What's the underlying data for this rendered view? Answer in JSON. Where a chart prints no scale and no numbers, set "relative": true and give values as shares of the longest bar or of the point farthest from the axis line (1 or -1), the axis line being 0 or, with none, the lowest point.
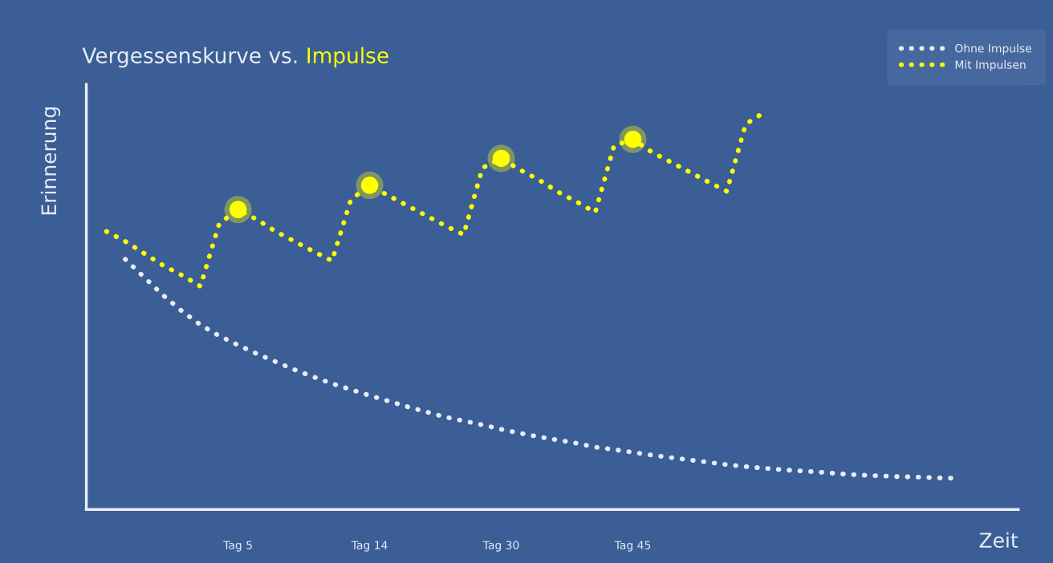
{
  "chart_data": {
    "type": "line",
    "title": "Vergessenskurve vs. Impulse",
    "xlabel": "Zeit",
    "ylabel": "Erinnerung",
    "relative": true,
    "categories": [
      null,
      null,
      null,
      null,
      null,
      null,
      null,
      "Tag 5",
      null,
      null,
      null,
      null,
      null,
      null,
      "Tag 14",
      null,
      null,
      null,
      null,
      null,
      null,
      "Tag 30",
      null,
      null,
      null,
      null,
      null,
      null,
      "Tag 45",
      null,
      null,
      null,
      null,
      null,
      null,
      null,
      null,
      null,
      null,
      null,
      null,
      null,
      null,
      null,
      null,
      null,
      null,
      null,
      null
    ],
    "grid": false,
    "legend": "top right",
    "line_style": "dotted",
    "marker": "none",
    "series": [
      {
        "name": "Ohne Impulse",
        "color": "#e8ecf4",
        "values": [
          null,
          0.63,
          0.585,
          0.54,
          0.5,
          0.465,
          0.437,
          0.414,
          0.392,
          0.372,
          0.352,
          0.334,
          0.317,
          0.302,
          0.287,
          0.273,
          0.259,
          0.246,
          0.233,
          0.223,
          0.213,
          0.202,
          0.192,
          0.183,
          0.175,
          0.167,
          0.157,
          0.151,
          0.144,
          0.137,
          0.131,
          0.125,
          0.119,
          0.113,
          0.108,
          0.104,
          0.1,
          0.097,
          0.094,
          0.09,
          0.087,
          0.085,
          0.083,
          0.082,
          0.08,
          0.079,
          null,
          null,
          null
        ]
      },
      {
        "name": "Mit Impulsen",
        "color": "#ffff00",
        "values": [
          0.7,
          0.675,
          0.645,
          0.615,
          0.59,
          0.562,
          0.72,
          0.755,
          0.73,
          0.7,
          0.675,
          0.65,
          0.626,
          0.78,
          0.816,
          0.79,
          0.765,
          0.74,
          0.715,
          0.692,
          0.86,
          0.884,
          0.855,
          0.83,
          0.8,
          0.775,
          0.748,
          0.916,
          0.932,
          0.9,
          0.875,
          0.85,
          0.825,
          0.801,
          0.97,
          1.0,
          null,
          null,
          null,
          null,
          null,
          null,
          null,
          null,
          null,
          null,
          null,
          null,
          null
        ]
      },
      {
        "type": "scatter",
        "color": "#ffff00",
        "marker": "circle",
        "values": [
          null,
          null,
          null,
          null,
          null,
          null,
          null,
          0.755,
          null,
          null,
          null,
          null,
          null,
          null,
          0.816,
          null,
          null,
          null,
          null,
          null,
          null,
          0.884,
          null,
          null,
          null,
          null,
          null,
          null,
          0.932,
          null,
          null,
          null,
          null,
          null,
          null,
          null,
          null,
          null,
          null,
          null,
          null,
          null,
          null,
          null,
          null,
          null,
          null,
          null,
          null
        ]
      }
    ]
  }
}
